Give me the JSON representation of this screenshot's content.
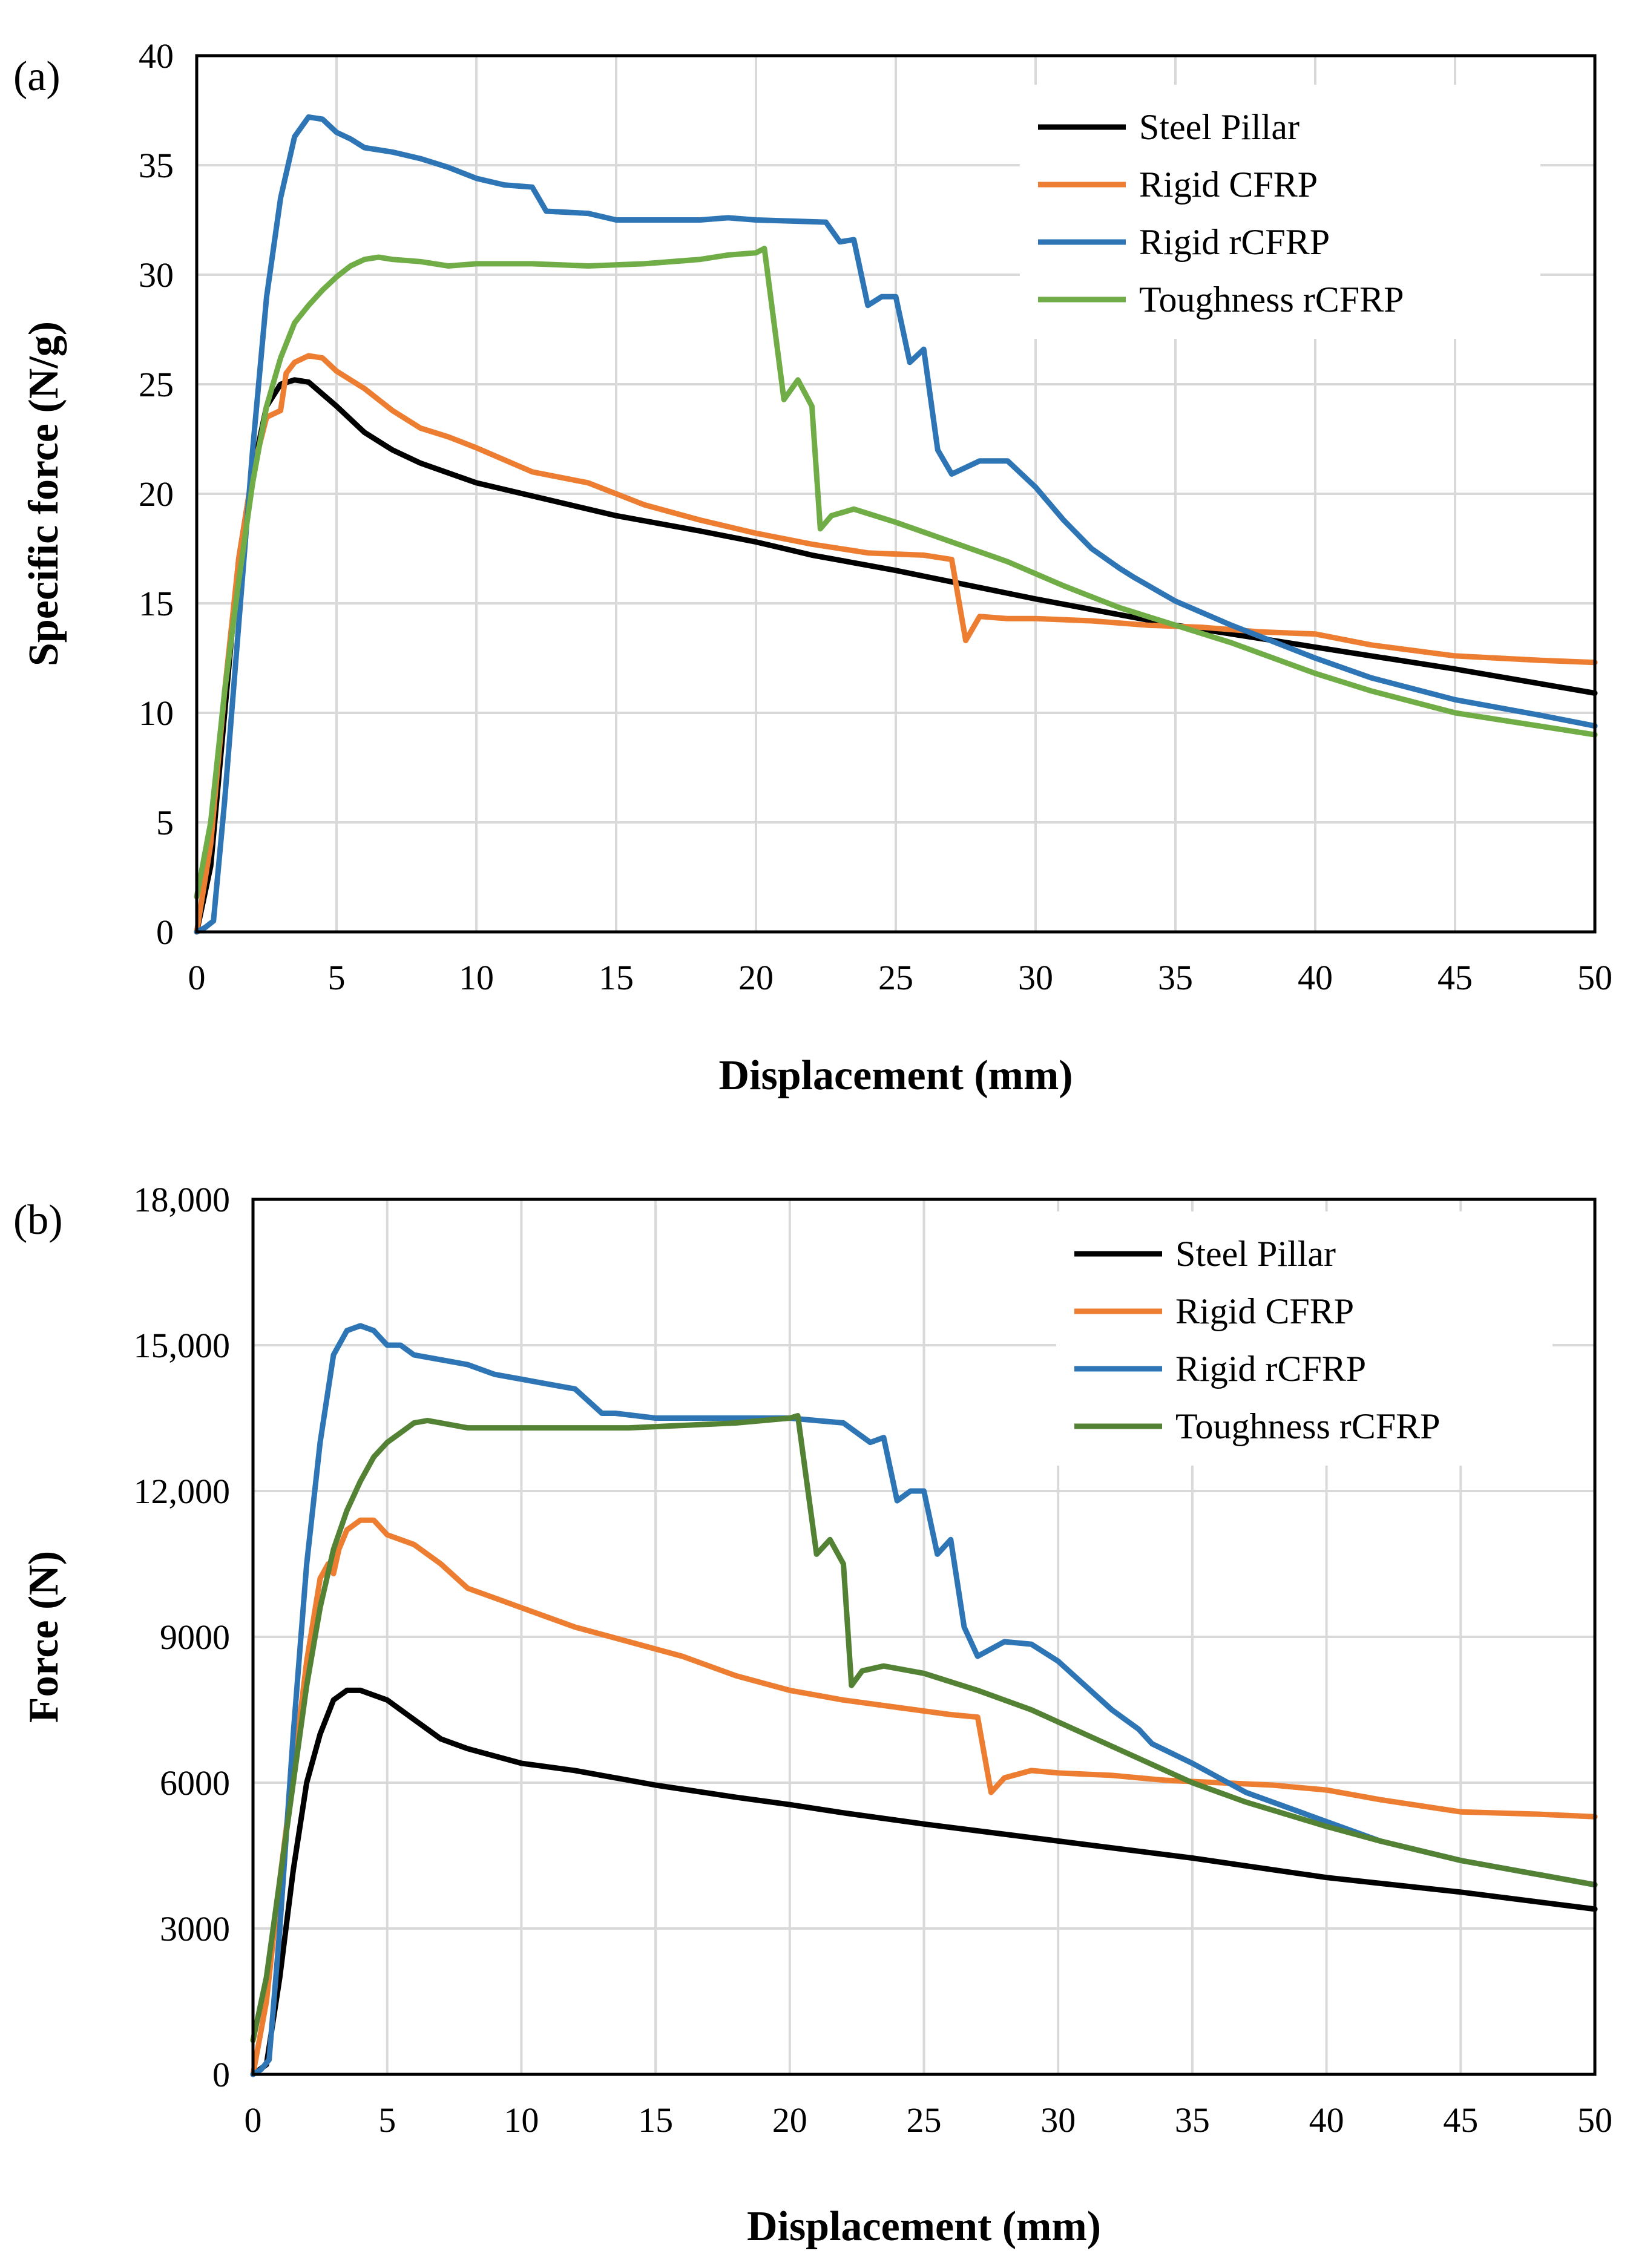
{
  "figure": {
    "panels": [
      "(a)",
      "(b)"
    ]
  },
  "chart_data": [
    {
      "type": "line",
      "panel_label": "(a)",
      "title": "",
      "xlabel": "Displacement (mm)",
      "ylabel": "Specific force (N/g)",
      "xlim": [
        0,
        50
      ],
      "ylim": [
        0,
        40
      ],
      "xticks": [
        0,
        5,
        10,
        15,
        20,
        25,
        30,
        35,
        40,
        45,
        50
      ],
      "xtick_labels": [
        "0",
        "5",
        "10",
        "15",
        "20",
        "25",
        "30",
        "35",
        "40",
        "45",
        "50"
      ],
      "yticks": [
        0,
        5,
        10,
        15,
        20,
        25,
        30,
        35,
        40
      ],
      "ytick_labels": [
        "0",
        "5",
        "10",
        "15",
        "20",
        "25",
        "30",
        "35",
        "40"
      ],
      "grid": true,
      "legend_position": "top-right",
      "series": [
        {
          "name": "Steel Pillar",
          "color": "#000000",
          "x": [
            0,
            0.5,
            1,
            1.5,
            2,
            2.5,
            3,
            3.5,
            4,
            5,
            6,
            7,
            8,
            10,
            12,
            15,
            18,
            20,
            22,
            25,
            30,
            35,
            40,
            45,
            50
          ],
          "y": [
            0,
            3,
            10,
            17,
            21,
            24,
            25,
            25.2,
            25.1,
            24,
            22.8,
            22,
            21.4,
            20.5,
            19.9,
            19,
            18.3,
            17.8,
            17.2,
            16.5,
            15.2,
            14,
            13,
            12,
            10.9
          ]
        },
        {
          "name": "Rigid CFRP",
          "color": "#ed7d31",
          "x": [
            0,
            0.5,
            1,
            1.5,
            2,
            2.5,
            3,
            3.2,
            3.5,
            4,
            4.5,
            5,
            6,
            7,
            8,
            9,
            10,
            12,
            14,
            16,
            18,
            20,
            22,
            24,
            26,
            27,
            27.5,
            28,
            29,
            30,
            32,
            34,
            36,
            38,
            40,
            42,
            45,
            48,
            50
          ],
          "y": [
            0,
            4,
            11,
            17,
            21,
            23.5,
            23.8,
            25.5,
            26,
            26.3,
            26.2,
            25.6,
            24.8,
            23.8,
            23,
            22.6,
            22.1,
            21,
            20.5,
            19.5,
            18.8,
            18.2,
            17.7,
            17.3,
            17.2,
            17,
            13.3,
            14.4,
            14.3,
            14.3,
            14.2,
            14,
            13.9,
            13.7,
            13.6,
            13.1,
            12.6,
            12.4,
            12.3
          ]
        },
        {
          "name": "Rigid rCFRP",
          "color": "#2e75b6",
          "x": [
            0,
            0.3,
            0.6,
            1,
            1.5,
            2,
            2.5,
            3,
            3.5,
            4,
            4.5,
            5,
            5.5,
            6,
            7,
            8,
            9,
            10,
            11,
            12,
            12.5,
            14,
            15,
            16,
            18,
            19,
            20,
            22.5,
            23,
            23.5,
            24,
            24.5,
            25,
            25.5,
            26,
            26.5,
            27,
            28,
            29,
            30,
            31,
            32,
            33,
            33.5,
            35,
            37,
            40,
            42,
            45,
            48,
            50
          ],
          "y": [
            0,
            0.2,
            0.5,
            6,
            14,
            22,
            29,
            33.5,
            36.3,
            37.2,
            37.1,
            36.5,
            36.2,
            35.8,
            35.6,
            35.3,
            34.9,
            34.4,
            34.1,
            34,
            32.9,
            32.8,
            32.5,
            32.5,
            32.5,
            32.6,
            32.5,
            32.4,
            31.5,
            31.6,
            28.6,
            29,
            29,
            26,
            26.6,
            22,
            20.9,
            21.5,
            21.5,
            20.3,
            18.8,
            17.5,
            16.6,
            16.2,
            15.1,
            14,
            12.5,
            11.6,
            10.6,
            9.9,
            9.4
          ]
        },
        {
          "name": "Toughness rCFRP",
          "color": "#70ad47",
          "x": [
            0,
            0.5,
            1,
            1.5,
            2,
            2.5,
            3,
            3.5,
            4,
            4.5,
            5,
            5.5,
            6,
            6.5,
            7,
            8,
            9,
            10,
            12,
            14,
            16,
            18,
            19,
            20,
            20.3,
            21,
            21.5,
            22,
            22.3,
            22.7,
            23.5,
            25,
            27,
            29,
            31,
            33,
            35,
            37,
            40,
            42,
            45,
            48,
            50
          ],
          "y": [
            1.6,
            5,
            11,
            16,
            20.5,
            24,
            26.2,
            27.8,
            28.6,
            29.3,
            29.9,
            30.4,
            30.7,
            30.8,
            30.7,
            30.6,
            30.4,
            30.5,
            30.5,
            30.4,
            30.5,
            30.7,
            30.9,
            31,
            31.2,
            24.3,
            25.2,
            24,
            18.4,
            19,
            19.3,
            18.7,
            17.8,
            16.9,
            15.8,
            14.8,
            14,
            13.2,
            11.8,
            11,
            10,
            9.4,
            9
          ]
        }
      ]
    },
    {
      "type": "line",
      "panel_label": "(b)",
      "title": "",
      "xlabel": "Displacement (mm)",
      "ylabel": "Force (N)",
      "xlim": [
        0,
        50
      ],
      "ylim": [
        0,
        18000
      ],
      "xticks": [
        0,
        5,
        10,
        15,
        20,
        25,
        30,
        35,
        40,
        45,
        50
      ],
      "xtick_labels": [
        "0",
        "5",
        "10",
        "15",
        "20",
        "25",
        "30",
        "35",
        "40",
        "45",
        "50"
      ],
      "yticks": [
        0,
        3000,
        6000,
        9000,
        12000,
        15000,
        18000
      ],
      "ytick_labels": [
        "0",
        "3000",
        "6000",
        "9000",
        "12,000",
        "15,000",
        "18,000"
      ],
      "grid": true,
      "legend_position": "top-right",
      "series": [
        {
          "name": "Steel Pillar",
          "color": "#000000",
          "x": [
            0,
            0.5,
            1,
            1.5,
            2,
            2.5,
            3,
            3.5,
            4,
            5,
            6,
            7,
            8,
            10,
            12,
            15,
            18,
            20,
            22,
            25,
            30,
            35,
            40,
            45,
            50
          ],
          "y": [
            0,
            200,
            2000,
            4200,
            6000,
            7000,
            7700,
            7900,
            7900,
            7700,
            7300,
            6900,
            6700,
            6400,
            6250,
            5950,
            5700,
            5550,
            5380,
            5150,
            4800,
            4450,
            4050,
            3750,
            3400
          ]
        },
        {
          "name": "Rigid CFRP",
          "color": "#ed7d31",
          "x": [
            0,
            0.5,
            1,
            1.5,
            2,
            2.5,
            2.8,
            3,
            3.2,
            3.5,
            4,
            4.5,
            5,
            6,
            7,
            8,
            9,
            10,
            12,
            14,
            16,
            18,
            20,
            22,
            24,
            26,
            27,
            27.5,
            28,
            29,
            30,
            32,
            34,
            36,
            38,
            40,
            42,
            45,
            48,
            50
          ],
          "y": [
            0,
            1500,
            4000,
            6200,
            8500,
            10200,
            10500,
            10300,
            10800,
            11200,
            11400,
            11400,
            11100,
            10900,
            10500,
            10000,
            9800,
            9600,
            9200,
            8900,
            8600,
            8200,
            7900,
            7700,
            7550,
            7400,
            7350,
            5800,
            6100,
            6250,
            6200,
            6150,
            6050,
            6000,
            5950,
            5850,
            5650,
            5400,
            5350,
            5300
          ]
        },
        {
          "name": "Rigid rCFRP",
          "color": "#2e75b6",
          "x": [
            0,
            0.3,
            0.6,
            1,
            1.5,
            2,
            2.5,
            3,
            3.5,
            4,
            4.5,
            5,
            5.5,
            6,
            7,
            8,
            9,
            10,
            11,
            12,
            13,
            13.5,
            15,
            17,
            19,
            20,
            22,
            23,
            23.5,
            24,
            24.5,
            25,
            25.5,
            26,
            26.5,
            27,
            28,
            29,
            30,
            31,
            32,
            33,
            33.5,
            35,
            37,
            40,
            42,
            45,
            48,
            50
          ],
          "y": [
            0,
            100,
            300,
            3000,
            7000,
            10500,
            13000,
            14800,
            15300,
            15400,
            15300,
            15000,
            15000,
            14800,
            14700,
            14600,
            14400,
            14300,
            14200,
            14100,
            13600,
            13600,
            13500,
            13500,
            13500,
            13500,
            13400,
            13000,
            13100,
            11800,
            12000,
            12000,
            10700,
            11000,
            9200,
            8600,
            8900,
            8850,
            8500,
            8000,
            7500,
            7100,
            6800,
            6400,
            5800,
            5200,
            4800,
            4400,
            4100,
            3900
          ]
        },
        {
          "name": "Toughness rCFRP",
          "color": "#548235",
          "x": [
            0,
            0.5,
            1,
            1.5,
            2,
            2.5,
            3,
            3.5,
            4,
            4.5,
            5,
            5.5,
            6,
            6.5,
            7,
            8,
            9,
            10,
            12,
            14,
            16,
            18,
            19,
            20,
            20.3,
            21,
            21.5,
            22,
            22.3,
            22.7,
            23.5,
            25,
            27,
            29,
            31,
            33,
            35,
            37,
            40,
            42,
            45,
            48,
            50
          ],
          "y": [
            700,
            2000,
            4000,
            6000,
            8000,
            9600,
            10800,
            11600,
            12200,
            12700,
            13000,
            13200,
            13400,
            13450,
            13400,
            13300,
            13300,
            13300,
            13300,
            13300,
            13350,
            13400,
            13450,
            13500,
            13550,
            10700,
            11000,
            10500,
            8000,
            8300,
            8400,
            8250,
            7900,
            7500,
            7000,
            6500,
            6000,
            5600,
            5100,
            4800,
            4400,
            4100,
            3900
          ]
        }
      ]
    }
  ]
}
